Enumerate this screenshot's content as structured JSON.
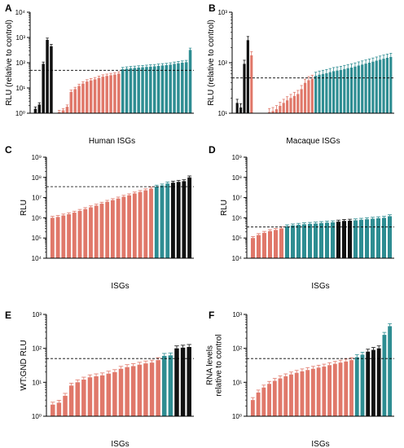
{
  "colors": {
    "black": "#111111",
    "salmon": "#e0786a",
    "teal": "#2e8d92",
    "axis": "#000000"
  },
  "chart_data": [
    {
      "panel": "A",
      "type": "bar",
      "scale": "log",
      "ylabel": "RLU (relative to control)",
      "xlabel": "Human ISGs",
      "ylim": [
        1,
        10000
      ],
      "y_tick_labels": [
        "10⁰",
        "10¹",
        "10²",
        "10³",
        "10⁴"
      ],
      "threshold": 50,
      "error_bars": true,
      "groups": [
        "black",
        "black",
        "black",
        "black",
        "black",
        "salmon",
        "salmon",
        "salmon",
        "salmon",
        "salmon",
        "salmon",
        "salmon",
        "salmon",
        "salmon",
        "salmon",
        "salmon",
        "salmon",
        "salmon",
        "salmon",
        "salmon",
        "salmon",
        "salmon",
        "teal",
        "teal",
        "teal",
        "teal",
        "teal",
        "teal",
        "teal",
        "teal",
        "teal",
        "teal",
        "teal",
        "teal",
        "teal",
        "teal",
        "teal",
        "teal",
        "teal",
        "teal"
      ],
      "values": [
        1.5,
        2.2,
        90,
        800,
        450,
        1,
        1.1,
        1.3,
        1.8,
        7,
        9,
        12,
        15,
        18,
        20,
        22,
        25,
        28,
        30,
        32,
        34,
        37,
        55,
        58,
        60,
        62,
        64,
        66,
        68,
        70,
        72,
        75,
        78,
        80,
        84,
        90,
        95,
        100,
        105,
        320
      ]
    },
    {
      "panel": "B",
      "type": "bar",
      "scale": "log",
      "ylabel": "RLU (relative to control)",
      "xlabel": "Macaque ISGs",
      "ylim": [
        10,
        1000
      ],
      "y_tick_labels": [
        "10¹",
        "10²",
        "10³"
      ],
      "threshold": 50,
      "error_bars": true,
      "groups": [
        "black",
        "black",
        "black",
        "black",
        "salmon",
        "salmon",
        "salmon",
        "salmon",
        "salmon",
        "salmon",
        "salmon",
        "salmon",
        "salmon",
        "salmon",
        "salmon",
        "salmon",
        "salmon",
        "salmon",
        "salmon",
        "salmon",
        "salmon",
        "salmon",
        "teal",
        "teal",
        "teal",
        "teal",
        "teal",
        "teal",
        "teal",
        "teal",
        "teal",
        "teal",
        "teal",
        "teal",
        "teal",
        "teal",
        "teal",
        "teal",
        "teal",
        "teal",
        "teal",
        "teal",
        "teal",
        "teal"
      ],
      "values": [
        16,
        13,
        95,
        280,
        140,
        10,
        10,
        10,
        10,
        10.5,
        11,
        12,
        14,
        16,
        18,
        20,
        22,
        24,
        30,
        40,
        45,
        48,
        55,
        58,
        60,
        62,
        65,
        68,
        70,
        72,
        75,
        78,
        80,
        84,
        88,
        92,
        96,
        100,
        105,
        110,
        115,
        120,
        125,
        130
      ]
    },
    {
      "panel": "C",
      "type": "bar",
      "scale": "log",
      "ylabel": "RLU",
      "xlabel": "ISGs",
      "ylim": [
        10000,
        1000000000
      ],
      "y_tick_labels": [
        "10⁴",
        "10⁵",
        "10⁶",
        "10⁷",
        "10⁸",
        "10⁹"
      ],
      "threshold": 35000000,
      "error_bars": true,
      "groups": [
        "salmon",
        "salmon",
        "salmon",
        "salmon",
        "salmon",
        "salmon",
        "salmon",
        "salmon",
        "salmon",
        "salmon",
        "salmon",
        "salmon",
        "salmon",
        "salmon",
        "salmon",
        "salmon",
        "salmon",
        "salmon",
        "salmon",
        "teal",
        "teal",
        "teal",
        "black",
        "black",
        "black",
        "black"
      ],
      "values": [
        1000000,
        1100000,
        1300000,
        1500000,
        1800000,
        2200000,
        2700000,
        3300000,
        4000000,
        5000000,
        6200000,
        7500000,
        9000000,
        11000000,
        13000000,
        16000000,
        19000000,
        23000000,
        28000000,
        35000000,
        40000000,
        50000000,
        55000000,
        60000000,
        65000000,
        100000000
      ]
    },
    {
      "panel": "D",
      "type": "bar",
      "scale": "log",
      "ylabel": "RLU",
      "xlabel": "ISGs",
      "ylim": [
        10000,
        1000000000
      ],
      "y_tick_labels": [
        "10⁴",
        "10⁵",
        "10⁶",
        "10⁷",
        "10⁸",
        "10⁹"
      ],
      "threshold": 350000,
      "error_bars": true,
      "groups": [
        "salmon",
        "salmon",
        "salmon",
        "salmon",
        "salmon",
        "salmon",
        "teal",
        "teal",
        "teal",
        "teal",
        "teal",
        "teal",
        "teal",
        "teal",
        "teal",
        "black",
        "black",
        "black",
        "teal",
        "teal",
        "teal",
        "teal",
        "teal",
        "teal",
        "teal"
      ],
      "values": [
        100000,
        140000,
        180000,
        220000,
        250000,
        300000,
        380000,
        420000,
        450000,
        480000,
        500000,
        520000,
        550000,
        580000,
        600000,
        650000,
        700000,
        720000,
        750000,
        800000,
        850000,
        900000,
        950000,
        1000000,
        1200000
      ]
    },
    {
      "panel": "E",
      "type": "bar",
      "scale": "log",
      "ylabel": "WT:GND RLU",
      "xlabel": "ISGs",
      "ylim": [
        1,
        1000
      ],
      "y_tick_labels": [
        "10⁰",
        "10¹",
        "10²",
        "10³"
      ],
      "threshold": 50,
      "error_bars": true,
      "groups": [
        "salmon",
        "salmon",
        "salmon",
        "salmon",
        "salmon",
        "salmon",
        "salmon",
        "salmon",
        "salmon",
        "salmon",
        "salmon",
        "salmon",
        "salmon",
        "salmon",
        "salmon",
        "salmon",
        "salmon",
        "salmon",
        "teal",
        "teal",
        "black",
        "black",
        "black"
      ],
      "values": [
        2.2,
        2.5,
        4,
        8,
        10,
        12,
        14,
        15,
        16,
        18,
        20,
        25,
        28,
        30,
        33,
        36,
        38,
        45,
        60,
        62,
        100,
        105,
        110
      ]
    },
    {
      "panel": "F",
      "type": "bar",
      "scale": "log",
      "ylabel": "RNA levels\nrelative to control",
      "xlabel": "ISGs",
      "ylim": [
        1,
        1000
      ],
      "y_tick_labels": [
        "10⁰",
        "10¹",
        "10²",
        "10³"
      ],
      "threshold": 50,
      "error_bars": true,
      "groups": [
        "salmon",
        "salmon",
        "salmon",
        "salmon",
        "salmon",
        "salmon",
        "salmon",
        "salmon",
        "salmon",
        "salmon",
        "salmon",
        "salmon",
        "salmon",
        "salmon",
        "salmon",
        "salmon",
        "salmon",
        "salmon",
        "salmon",
        "teal",
        "teal",
        "black",
        "black",
        "black",
        "teal",
        "teal"
      ],
      "values": [
        3,
        5,
        7,
        9,
        11,
        13,
        15,
        17,
        19,
        21,
        23,
        25,
        27,
        29,
        32,
        35,
        38,
        41,
        45,
        55,
        65,
        80,
        90,
        100,
        250,
        450
      ]
    }
  ]
}
